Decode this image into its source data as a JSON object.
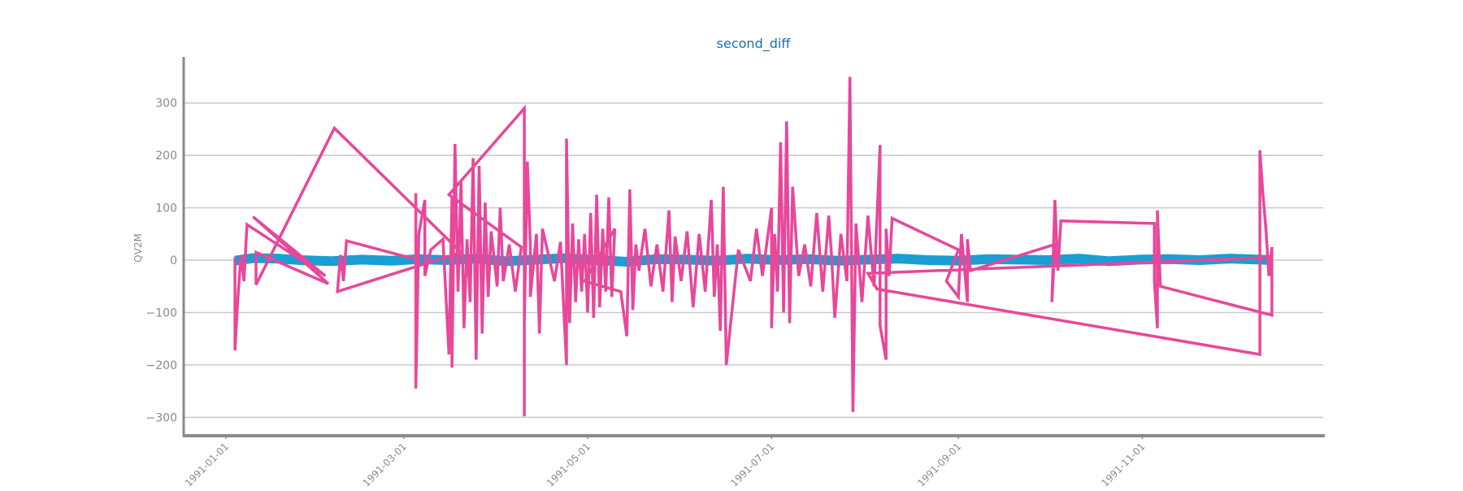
{
  "chart_data": {
    "type": "line",
    "title": "second_diff",
    "xlabel": "",
    "ylabel": "QV2M",
    "x_ticks": [
      "1991-01-01",
      "1991-03-01",
      "1991-05-01",
      "1991-07-01",
      "1991-09-01",
      "1991-11-01"
    ],
    "y_ticks": [
      300,
      200,
      100,
      0,
      -100,
      -200,
      -300
    ],
    "y_tick_labels": [
      "300",
      "200",
      "100",
      "0",
      "−100",
      "−200",
      "−300"
    ],
    "xlim": [
      "1990-12-18",
      "1991-12-31"
    ],
    "ylim": [
      -332,
      388
    ],
    "grid": "horizontal",
    "legend": "none",
    "series": [
      {
        "color": "#1a9ed4",
        "points": [
          [
            "1991-01-04",
            -1
          ],
          [
            "1991-01-10",
            4
          ],
          [
            "1991-01-18",
            3
          ],
          [
            "1991-01-26",
            0
          ],
          [
            "1991-02-05",
            -2
          ],
          [
            "1991-02-15",
            1
          ],
          [
            "1991-02-25",
            -1
          ],
          [
            "1991-03-06",
            2
          ],
          [
            "1991-03-15",
            0
          ],
          [
            "1991-03-25",
            3
          ],
          [
            "1991-04-04",
            -2
          ],
          [
            "1991-04-14",
            1
          ],
          [
            "1991-04-24",
            4
          ],
          [
            "1991-05-04",
            0
          ],
          [
            "1991-05-14",
            -3
          ],
          [
            "1991-05-24",
            2
          ],
          [
            "1991-06-03",
            1
          ],
          [
            "1991-06-13",
            -1
          ],
          [
            "1991-06-23",
            3
          ],
          [
            "1991-07-03",
            0
          ],
          [
            "1991-07-13",
            2
          ],
          [
            "1991-07-23",
            -1
          ],
          [
            "1991-08-02",
            1
          ],
          [
            "1991-08-12",
            3
          ],
          [
            "1991-08-22",
            0
          ],
          [
            "1991-09-01",
            -1
          ],
          [
            "1991-09-11",
            2
          ],
          [
            "1991-09-21",
            1
          ],
          [
            "1991-10-01",
            0
          ],
          [
            "1991-10-11",
            3
          ],
          [
            "1991-10-21",
            -2
          ],
          [
            "1991-10-31",
            1
          ],
          [
            "1991-11-10",
            2
          ],
          [
            "1991-11-20",
            0
          ],
          [
            "1991-11-30",
            3
          ],
          [
            "1991-12-10",
            1
          ],
          [
            "1991-12-14",
            0
          ]
        ]
      },
      {
        "color": "#e8479a",
        "points": [
          [
            "1991-01-04",
            5
          ],
          [
            "1991-01-04",
            -172
          ],
          [
            "1991-01-05",
            -70
          ],
          [
            "1991-01-06",
            10
          ],
          [
            "1991-01-07",
            -40
          ],
          [
            "1991-01-08",
            68
          ],
          [
            "1991-02-03",
            -30
          ],
          [
            "1991-01-10",
            83
          ],
          [
            "1991-02-04",
            -45
          ],
          [
            "1991-01-11",
            15
          ],
          [
            "1991-01-11",
            -47
          ],
          [
            "1991-02-06",
            252
          ],
          [
            "1991-03-20",
            15
          ],
          [
            "1991-02-07",
            -60
          ],
          [
            "1991-02-08",
            10
          ],
          [
            "1991-02-09",
            -40
          ],
          [
            "1991-02-10",
            37
          ],
          [
            "1991-03-06",
            0
          ],
          [
            "1991-03-05",
            -50
          ],
          [
            "1991-03-05",
            128
          ],
          [
            "1991-03-05",
            -245
          ],
          [
            "1991-03-06",
            50
          ],
          [
            "1991-03-08",
            115
          ],
          [
            "1991-03-08",
            -30
          ],
          [
            "1991-03-10",
            20
          ],
          [
            "1991-03-14",
            40
          ],
          [
            "1991-03-16",
            -180
          ],
          [
            "1991-03-17",
            120
          ],
          [
            "1991-03-17",
            -205
          ],
          [
            "1991-03-18",
            222
          ],
          [
            "1991-03-19",
            -60
          ],
          [
            "1991-03-20",
            150
          ],
          [
            "1991-03-21",
            -130
          ],
          [
            "1991-03-22",
            40
          ],
          [
            "1991-03-23",
            -80
          ],
          [
            "1991-03-24",
            195
          ],
          [
            "1991-03-25",
            -190
          ],
          [
            "1991-03-26",
            180
          ],
          [
            "1991-03-27",
            -140
          ],
          [
            "1991-03-28",
            110
          ],
          [
            "1991-03-29",
            -70
          ],
          [
            "1991-03-30",
            55
          ],
          [
            "1991-04-01",
            -50
          ],
          [
            "1991-04-02",
            100
          ],
          [
            "1991-04-03",
            -40
          ],
          [
            "1991-04-05",
            30
          ],
          [
            "1991-04-07",
            -60
          ],
          [
            "1991-04-09",
            25
          ],
          [
            "1991-03-16",
            125
          ],
          [
            "1991-04-10",
            290
          ],
          [
            "1991-04-10",
            -298
          ],
          [
            "1991-04-10",
            -120
          ],
          [
            "1991-04-11",
            188
          ],
          [
            "1991-04-12",
            30
          ],
          [
            "1991-04-12",
            -70
          ],
          [
            "1991-04-14",
            50
          ],
          [
            "1991-04-15",
            -140
          ],
          [
            "1991-04-16",
            60
          ],
          [
            "1991-04-20",
            -40
          ],
          [
            "1991-04-22",
            35
          ],
          [
            "1991-04-24",
            -200
          ],
          [
            "1991-04-24",
            232
          ],
          [
            "1991-04-25",
            -120
          ],
          [
            "1991-04-26",
            70
          ],
          [
            "1991-04-27",
            -80
          ],
          [
            "1991-04-28",
            40
          ],
          [
            "1991-04-29",
            -60
          ],
          [
            "1991-04-30",
            50
          ],
          [
            "1991-05-01",
            -100
          ],
          [
            "1991-05-02",
            90
          ],
          [
            "1991-05-03",
            -110
          ],
          [
            "1991-05-04",
            125
          ],
          [
            "1991-05-05",
            -90
          ],
          [
            "1991-05-06",
            60
          ],
          [
            "1991-05-07",
            -60
          ],
          [
            "1991-05-08",
            120
          ],
          [
            "1991-05-09",
            -70
          ],
          [
            "1991-05-10",
            60
          ],
          [
            "1991-04-30",
            -40
          ],
          [
            "1991-05-12",
            -60
          ],
          [
            "1991-05-14",
            -145
          ],
          [
            "1991-05-15",
            135
          ],
          [
            "1991-05-16",
            -95
          ],
          [
            "1991-05-17",
            30
          ],
          [
            "1991-05-18",
            -20
          ],
          [
            "1991-05-20",
            60
          ],
          [
            "1991-05-22",
            -50
          ],
          [
            "1991-05-24",
            30
          ],
          [
            "1991-05-26",
            -60
          ],
          [
            "1991-05-28",
            95
          ],
          [
            "1991-05-29",
            -80
          ],
          [
            "1991-05-30",
            45
          ],
          [
            "1991-06-01",
            -40
          ],
          [
            "1991-06-03",
            55
          ],
          [
            "1991-06-05",
            -90
          ],
          [
            "1991-06-07",
            50
          ],
          [
            "1991-06-09",
            -60
          ],
          [
            "1991-06-11",
            115
          ],
          [
            "1991-06-12",
            -70
          ],
          [
            "1991-06-13",
            30
          ],
          [
            "1991-06-14",
            -135
          ],
          [
            "1991-06-15",
            140
          ],
          [
            "1991-06-16",
            -200
          ],
          [
            "1991-06-20",
            20
          ],
          [
            "1991-06-24",
            -40
          ],
          [
            "1991-06-26",
            60
          ],
          [
            "1991-06-28",
            -30
          ],
          [
            "1991-07-01",
            100
          ],
          [
            "1991-07-01",
            -130
          ],
          [
            "1991-07-02",
            50
          ],
          [
            "1991-07-03",
            -60
          ],
          [
            "1991-07-04",
            225
          ],
          [
            "1991-07-05",
            -100
          ],
          [
            "1991-07-06",
            265
          ],
          [
            "1991-07-07",
            -120
          ],
          [
            "1991-07-08",
            140
          ],
          [
            "1991-07-10",
            -30
          ],
          [
            "1991-07-12",
            30
          ],
          [
            "1991-07-14",
            -50
          ],
          [
            "1991-07-16",
            90
          ],
          [
            "1991-07-18",
            -60
          ],
          [
            "1991-07-20",
            85
          ],
          [
            "1991-07-21",
            0
          ],
          [
            "1991-07-22",
            -110
          ],
          [
            "1991-07-24",
            50
          ],
          [
            "1991-07-26",
            -40
          ],
          [
            "1991-07-27",
            350
          ],
          [
            "1991-07-28",
            -290
          ],
          [
            "1991-07-29",
            70
          ],
          [
            "1991-07-31",
            -80
          ],
          [
            "1991-08-02",
            85
          ],
          [
            "1991-08-04",
            -50
          ],
          [
            "1991-08-06",
            220
          ],
          [
            "1991-08-06",
            -125
          ],
          [
            "1991-08-08",
            -190
          ],
          [
            "1991-08-08",
            60
          ],
          [
            "1991-08-09",
            -30
          ],
          [
            "1991-08-10",
            80
          ],
          [
            "1991-09-01",
            20
          ],
          [
            "1991-08-28",
            -40
          ],
          [
            "1991-09-01",
            -70
          ],
          [
            "1991-09-02",
            50
          ],
          [
            "1991-09-04",
            -80
          ],
          [
            "1991-09-04",
            40
          ],
          [
            "1991-09-05",
            -20
          ],
          [
            "1991-10-03",
            30
          ],
          [
            "1991-10-02",
            -80
          ],
          [
            "1991-10-03",
            115
          ],
          [
            "1991-10-04",
            -20
          ],
          [
            "1991-10-05",
            75
          ],
          [
            "1991-11-05",
            70
          ],
          [
            "1991-11-05",
            -40
          ],
          [
            "1991-11-06",
            -130
          ],
          [
            "1991-11-06",
            95
          ],
          [
            "1991-11-07",
            -50
          ],
          [
            "1991-12-14",
            -105
          ],
          [
            "1991-12-14",
            25
          ],
          [
            "1991-12-13",
            -30
          ],
          [
            "1991-12-12",
            60
          ],
          [
            "1991-12-11",
            127
          ],
          [
            "1991-12-10",
            210
          ],
          [
            "1991-12-10",
            -180
          ],
          [
            "1991-08-05",
            -55
          ],
          [
            "1991-08-02",
            -25
          ],
          [
            "1991-12-14",
            5
          ]
        ]
      }
    ]
  }
}
